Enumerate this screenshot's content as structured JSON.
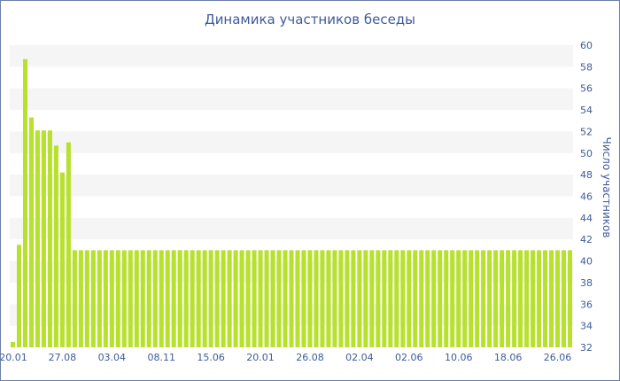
{
  "chart_data": {
    "type": "bar",
    "title": "Динамика участников беседы",
    "ylabel": "Число участников",
    "xlabel": "",
    "ylim": [
      32,
      60
    ],
    "yticks": [
      32,
      34,
      36,
      38,
      40,
      42,
      44,
      46,
      48,
      50,
      52,
      54,
      56,
      58,
      60
    ],
    "y_axis_position": "right",
    "grid": "horizontal bands",
    "bar_color": "#b7e12d",
    "band_color": "#f5f5f5",
    "text_color": "#3e5a9c",
    "xtick_labels": [
      "20.01",
      "27.08",
      "03.04",
      "08.11",
      "15.06",
      "20.01",
      "26.08",
      "02.04",
      "02.06",
      "10.06",
      "18.06",
      "26.06"
    ],
    "xtick_bar_index": [
      0,
      8,
      16,
      24,
      32,
      40,
      48,
      56,
      64,
      72,
      80,
      88
    ],
    "values": [
      32.5,
      41.5,
      58.7,
      53.3,
      52.1,
      52.1,
      52.1,
      50.7,
      48.2,
      51,
      41,
      41,
      41,
      41,
      41,
      41,
      41,
      41,
      41,
      41,
      41,
      41,
      41,
      41,
      41,
      41,
      41,
      41,
      41,
      41,
      41,
      41,
      41,
      41,
      41,
      41,
      41,
      41,
      41,
      41,
      41,
      41,
      41,
      41,
      41,
      41,
      41,
      41,
      41,
      41,
      41,
      41,
      41,
      41,
      41,
      41,
      41,
      41,
      41,
      41,
      41,
      41,
      41,
      41,
      41,
      41,
      41,
      41,
      41,
      41,
      41,
      41,
      41,
      41,
      41,
      41,
      41,
      41,
      41,
      41,
      41,
      41,
      41,
      41,
      41,
      41,
      41,
      41,
      41,
      41,
      41
    ]
  }
}
